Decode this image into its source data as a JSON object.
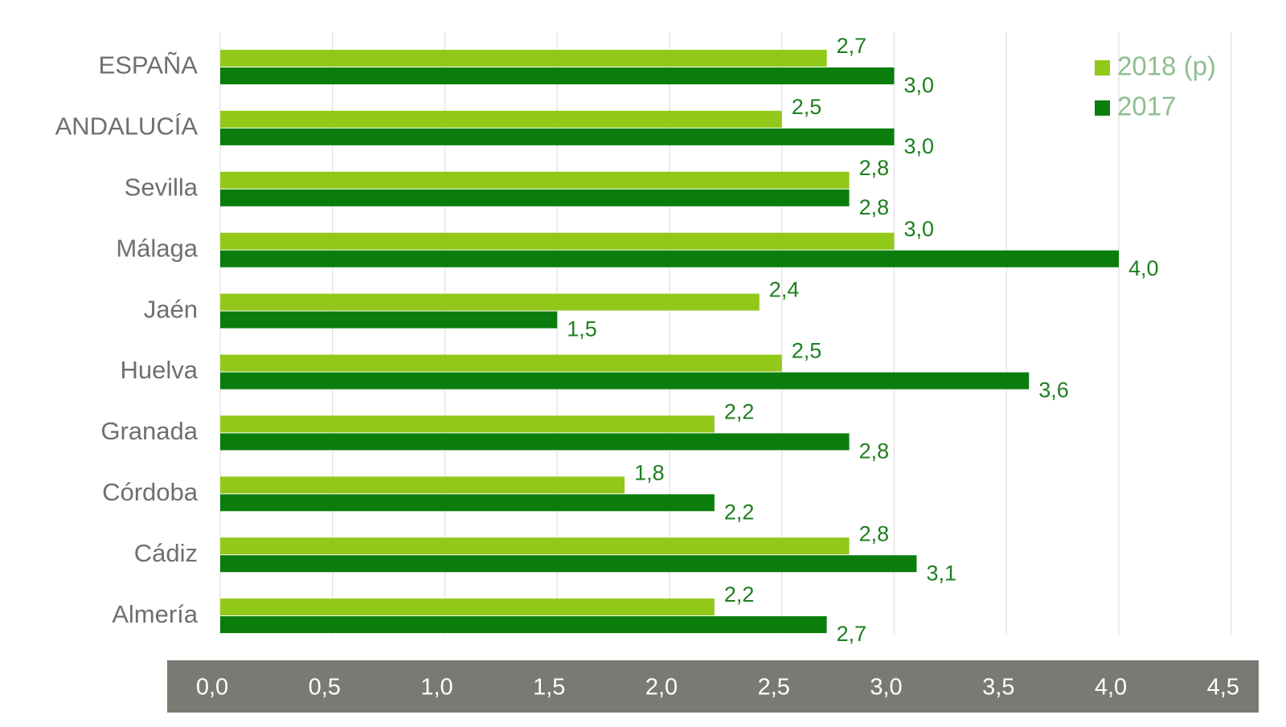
{
  "chart_data": {
    "type": "bar",
    "orientation": "horizontal",
    "categories": [
      "ESPAÑA",
      "ANDALUCÍA",
      "Sevilla",
      "Málaga",
      "Jaén",
      "Huelva",
      "Granada",
      "Córdoba",
      "Cádiz",
      "Almería"
    ],
    "series": [
      {
        "name": "2018 (p)",
        "color": "#92c81a",
        "values": [
          2.7,
          2.5,
          2.8,
          3.0,
          2.4,
          2.5,
          2.2,
          1.8,
          2.8,
          2.2
        ],
        "labels": [
          "2,7",
          "2,5",
          "2,8",
          "3,0",
          "2,4",
          "2,5",
          "2,2",
          "1,8",
          "2,8",
          "2,2"
        ]
      },
      {
        "name": "2017",
        "color": "#0a7d0d",
        "values": [
          3.0,
          3.0,
          2.8,
          4.0,
          1.5,
          3.6,
          2.8,
          2.2,
          3.1,
          2.7
        ],
        "labels": [
          "3,0",
          "3,0",
          "2,8",
          "4,0",
          "1,5",
          "3,6",
          "2,8",
          "2,2",
          "3,1",
          "2,7"
        ]
      }
    ],
    "xlim": [
      0,
      4.5
    ],
    "x_ticks": [
      0,
      0.5,
      1.0,
      1.5,
      2.0,
      2.5,
      3.0,
      3.5,
      4.0,
      4.5
    ],
    "x_tick_labels": [
      "0,0",
      "0,5",
      "1,0",
      "1,5",
      "2,0",
      "2,5",
      "3,0",
      "3,5",
      "4,0",
      "4,5"
    ],
    "grid": "vertical",
    "legend_position": "top-right",
    "axis_band_color": "#7a7a74",
    "title": "",
    "xlabel": "",
    "ylabel": ""
  }
}
